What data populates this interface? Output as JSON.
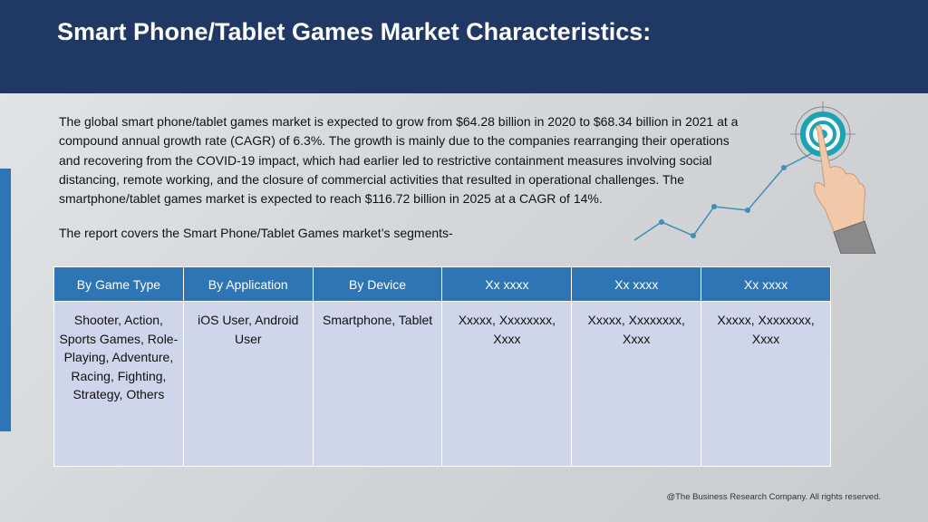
{
  "title": "Smart Phone/Tablet Games Market Characteristics:",
  "paragraph": "The global smart phone/tablet games market is expected to grow from $64.28 billion in 2020 to $68.34 billion in 2021 at a compound annual growth rate (CAGR) of 6.3%. The growth is mainly due to the companies rearranging their operations and recovering from the COVID-19 impact, which had earlier led to restrictive containment measures involving social distancing, remote working, and the closure of commercial activities that resulted in operational challenges. The smartphone/tablet games market is expected to reach $116.72 billion in 2025 at a CAGR of 14%.",
  "segments_intro": "The report covers the Smart Phone/Tablet Games market’s segments-",
  "table": {
    "headers": [
      "By Game Type",
      "By Application",
      "By Device",
      "Xx xxxx",
      "Xx xxxx",
      "Xx xxxx"
    ],
    "cells": [
      "Shooter, Action, Sports Games, Role-Playing, Adventure, Racing, Fighting, Strategy, Others",
      "iOS User, Android User",
      "Smartphone, Tablet",
      "Xxxxx, Xxxxxxxx, Xxxx",
      "Xxxxx, Xxxxxxxx, Xxxx",
      "Xxxxx, Xxxxxxxx, Xxxx"
    ]
  },
  "footer": "@The Business Research Company. All rights reserved.",
  "colors": {
    "title_bar": "#1f3864",
    "header_cell": "#2e75b6",
    "body_cell": "#cfd5ea",
    "accent": "#2e75b6",
    "target_teal": "#1aa3b5"
  },
  "icons": [
    "target-icon",
    "pointing-hand-icon",
    "growth-line-icon"
  ]
}
